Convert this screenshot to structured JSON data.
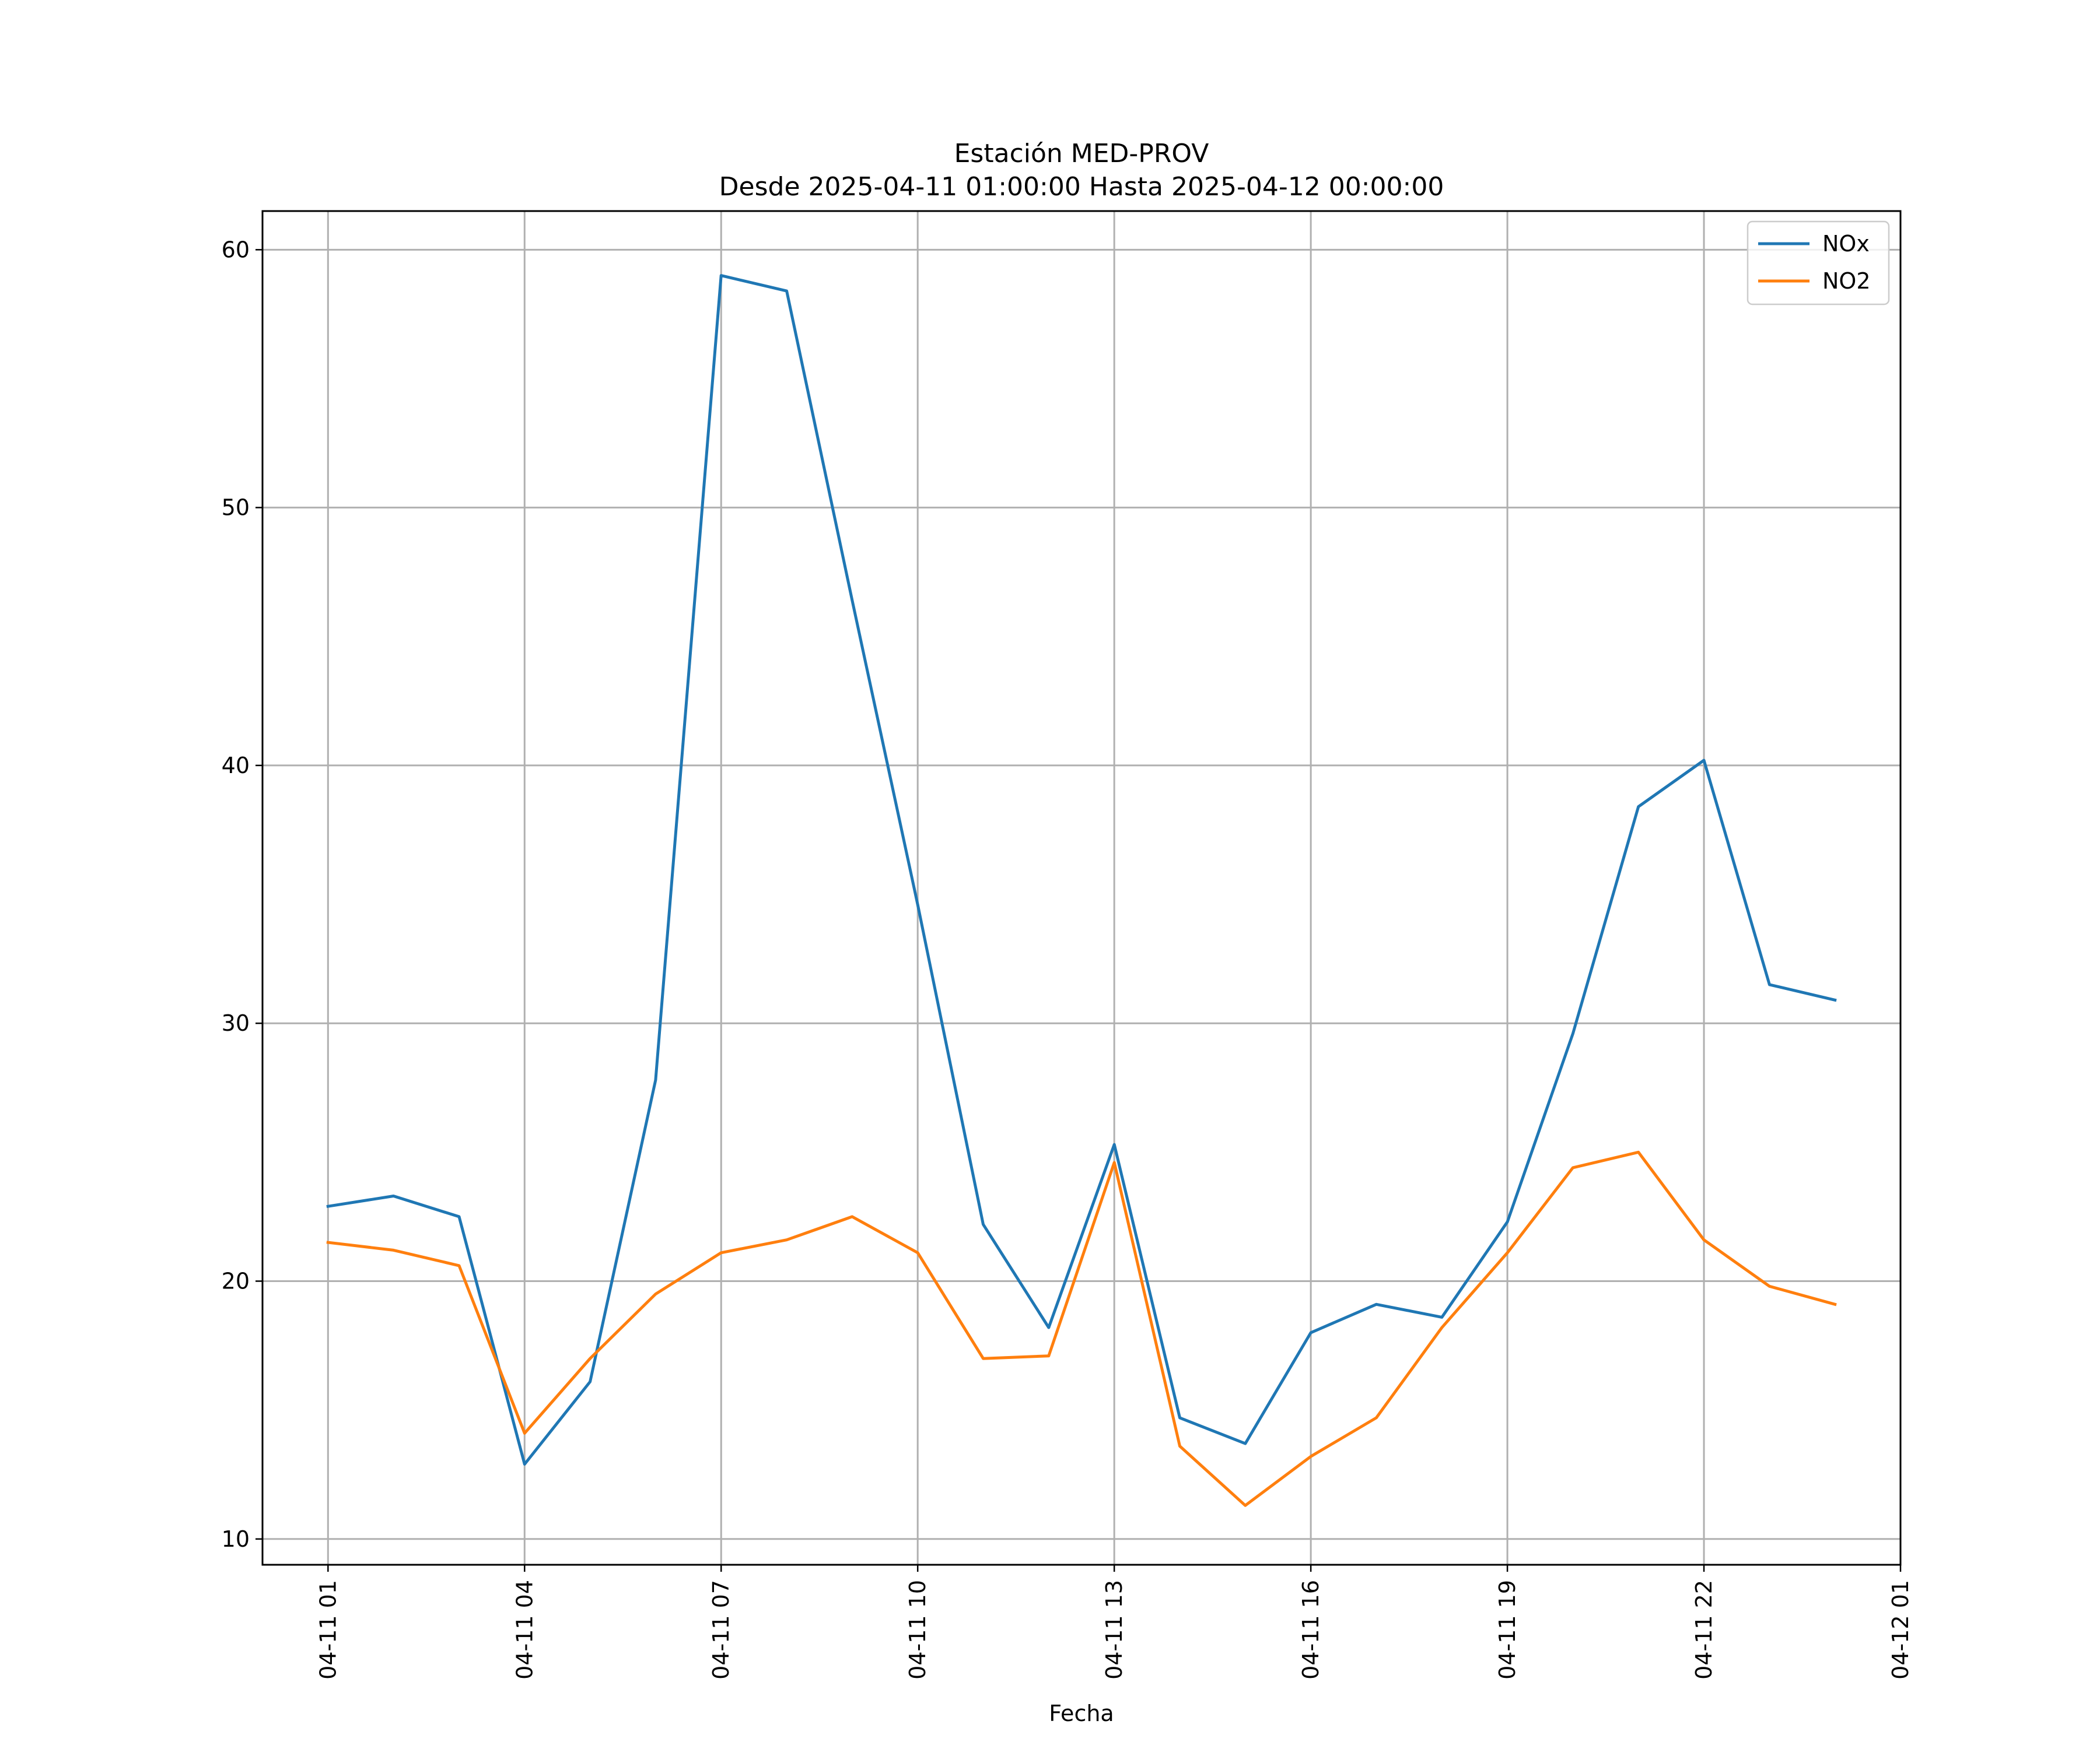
{
  "chart_data": {
    "type": "line",
    "title": "Estación MED-PROV",
    "subtitle": "Desde 2025-04-11 01:00:00 Hasta 2025-04-12 00:00:00",
    "xlabel": "Fecha",
    "ylabel": "",
    "x": [
      "2025-04-11 01:00",
      "2025-04-11 02:00",
      "2025-04-11 03:00",
      "2025-04-11 04:00",
      "2025-04-11 05:00",
      "2025-04-11 06:00",
      "2025-04-11 07:00",
      "2025-04-11 08:00",
      "2025-04-11 09:00",
      "2025-04-11 10:00",
      "2025-04-11 11:00",
      "2025-04-11 12:00",
      "2025-04-11 13:00",
      "2025-04-11 14:00",
      "2025-04-11 15:00",
      "2025-04-11 16:00",
      "2025-04-11 17:00",
      "2025-04-11 18:00",
      "2025-04-11 19:00",
      "2025-04-11 20:00",
      "2025-04-11 21:00",
      "2025-04-11 22:00",
      "2025-04-11 23:00",
      "2025-04-12 00:00"
    ],
    "xlim": [
      "2025-04-11 00:00",
      "2025-04-12 01:00"
    ],
    "x_ticks": [
      {
        "at": "2025-04-11 01:00",
        "label": "04-11 01"
      },
      {
        "at": "2025-04-11 04:00",
        "label": "04-11 04"
      },
      {
        "at": "2025-04-11 07:00",
        "label": "04-11 07"
      },
      {
        "at": "2025-04-11 10:00",
        "label": "04-11 10"
      },
      {
        "at": "2025-04-11 13:00",
        "label": "04-11 13"
      },
      {
        "at": "2025-04-11 16:00",
        "label": "04-11 16"
      },
      {
        "at": "2025-04-11 19:00",
        "label": "04-11 19"
      },
      {
        "at": "2025-04-11 22:00",
        "label": "04-11 22"
      },
      {
        "at": "2025-04-12 01:00",
        "label": "04-12 01"
      }
    ],
    "ylim": [
      9,
      61.5
    ],
    "y_ticks": [
      10,
      20,
      30,
      40,
      50,
      60
    ],
    "grid": true,
    "legend_position": "top-right",
    "series": [
      {
        "name": "NOx",
        "color": "#1f77b4",
        "values": [
          22.9,
          23.3,
          22.5,
          12.9,
          16.1,
          27.8,
          59.0,
          58.4,
          46.4,
          34.6,
          22.2,
          18.2,
          25.3,
          14.7,
          13.7,
          18.0,
          19.1,
          18.6,
          22.3,
          29.6,
          38.4,
          40.2,
          31.5,
          30.9
        ]
      },
      {
        "name": "NO2",
        "color": "#ff7f0e",
        "values": [
          21.5,
          21.2,
          20.6,
          14.1,
          17.0,
          19.5,
          21.1,
          21.6,
          22.5,
          21.1,
          17.0,
          17.1,
          24.6,
          13.6,
          11.3,
          13.2,
          14.7,
          18.2,
          21.1,
          24.4,
          25.0,
          21.6,
          19.8,
          19.1
        ]
      }
    ]
  }
}
